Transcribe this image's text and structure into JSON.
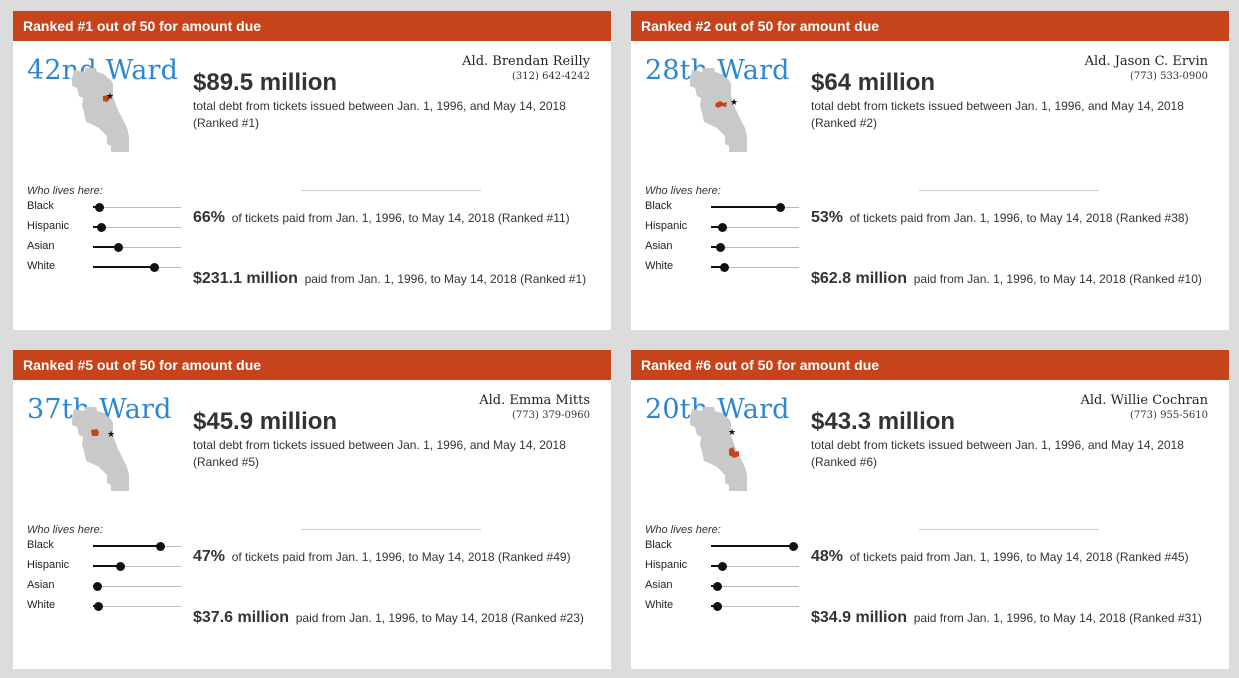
{
  "cards": [
    {
      "rank_label": "Ranked #1 out of 50 for amount due",
      "ward": "42nd Ward",
      "alderman": "Ald. Brendan Reilly",
      "phone": "(312) 642-4242",
      "amount": "$89.5 million",
      "amount_desc": "total debt from tickets issued between Jan. 1, 1996, and May 14, 2018 (Ranked #1)",
      "pct": "66%",
      "pct_desc": "of tickets paid from Jan. 1, 1996, to May 14, 2018 (Ranked #11)",
      "paid": "$231.1 million",
      "paid_desc": "paid from Jan. 1, 1996, to May 14, 2018 (Ranked #1)",
      "who_lives": "Who lives here:",
      "demographics": [
        {
          "label": "Black",
          "value": 0.07
        },
        {
          "label": "Hispanic",
          "value": 0.09
        },
        {
          "label": "Asian",
          "value": 0.28
        },
        {
          "label": "White",
          "value": 0.69
        }
      ]
    },
    {
      "rank_label": "Ranked #2 out of 50 for amount due",
      "ward": "28th Ward",
      "alderman": "Ald. Jason C. Ervin",
      "phone": "(773) 533-0900",
      "amount": "$64 million",
      "amount_desc": "total debt from tickets issued between Jan. 1, 1996, and May 14, 2018 (Ranked #2)",
      "pct": "53%",
      "pct_desc": "of tickets paid from Jan. 1, 1996, to May 14, 2018 (Ranked #38)",
      "paid": "$62.8 million",
      "paid_desc": "paid from Jan. 1, 1996, to May 14, 2018 (Ranked #10)",
      "who_lives": "Who lives here:",
      "demographics": [
        {
          "label": "Black",
          "value": 0.78
        },
        {
          "label": "Hispanic",
          "value": 0.13
        },
        {
          "label": "Asian",
          "value": 0.1
        },
        {
          "label": "White",
          "value": 0.15
        }
      ]
    },
    {
      "rank_label": "Ranked #5 out of 50 for amount due",
      "ward": "37th Ward",
      "alderman": "Ald. Emma Mitts",
      "phone": "(773) 379-0960",
      "amount": "$45.9 million",
      "amount_desc": "total debt from tickets issued between Jan. 1, 1996, and May 14, 2018 (Ranked #5)",
      "pct": "47%",
      "pct_desc": "of tickets paid from Jan. 1, 1996, to May 14, 2018 (Ranked #49)",
      "paid": "$37.6 million",
      "paid_desc": "paid from Jan. 1, 1996, to May 14, 2018 (Ranked #23)",
      "who_lives": "Who lives here:",
      "demographics": [
        {
          "label": "Black",
          "value": 0.76
        },
        {
          "label": "Hispanic",
          "value": 0.31
        },
        {
          "label": "Asian",
          "value": 0.05
        },
        {
          "label": "White",
          "value": 0.06
        }
      ]
    },
    {
      "rank_label": "Ranked #6 out of 50 for amount due",
      "ward": "20th Ward",
      "alderman": "Ald. Willie Cochran",
      "phone": "(773) 955-5610",
      "amount": "$43.3 million",
      "amount_desc": "total debt from tickets issued between Jan. 1, 1996, and May 14, 2018 (Ranked #6)",
      "pct": "48%",
      "pct_desc": "of tickets paid from Jan. 1, 1996, to May 14, 2018 (Ranked #45)",
      "paid": "$34.9 million",
      "paid_desc": "paid from Jan. 1, 1996, to May 14, 2018 (Ranked #31)",
      "who_lives": "Who lives here:",
      "demographics": [
        {
          "label": "Black",
          "value": 0.93
        },
        {
          "label": "Hispanic",
          "value": 0.12
        },
        {
          "label": "Asian",
          "value": 0.07
        },
        {
          "label": "White",
          "value": 0.07
        }
      ]
    }
  ],
  "colors": {
    "header": "#c7431b",
    "ward_title": "#2b87d1",
    "map_gray": "#c9c9c9",
    "ward_highlight": "#c7431b",
    "background": "#dcdcdc"
  }
}
